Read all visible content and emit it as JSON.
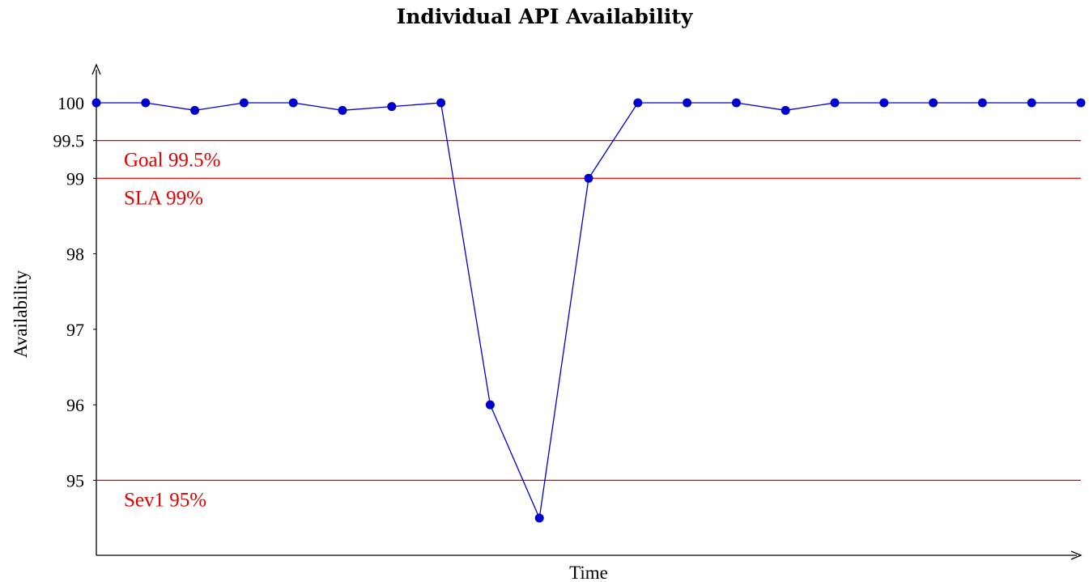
{
  "chart_data": {
    "type": "line",
    "title": "Individual API Availability",
    "xlabel": "Time",
    "ylabel": "Availability",
    "ylim": [
      94,
      100.5
    ],
    "yticks": [
      95,
      96,
      97,
      98,
      99,
      99.5,
      100
    ],
    "ytick_labels": [
      "95",
      "96",
      "97",
      "98",
      "99",
      "99.5",
      "100"
    ],
    "grid": false,
    "series": [
      {
        "color": "#0000cc",
        "x": [
          1,
          2,
          3,
          4,
          5,
          6,
          7,
          8,
          9,
          10,
          11,
          12,
          13,
          14,
          15,
          16,
          17,
          18,
          19,
          20,
          21
        ],
        "values": [
          100,
          100,
          99.9,
          100,
          100,
          99.9,
          99.95,
          100,
          96,
          94.5,
          99,
          100,
          100,
          100,
          99.9,
          100,
          100,
          100,
          100,
          100,
          100
        ]
      }
    ],
    "reference_lines": [
      {
        "y": 99.5,
        "label": "Goal 99.5%",
        "color": "#e00000"
      },
      {
        "y": 99,
        "label": "SLA 99%",
        "color": "#e00000"
      },
      {
        "y": 95,
        "label": "Sev1 95%",
        "color": "#e00000"
      }
    ]
  }
}
